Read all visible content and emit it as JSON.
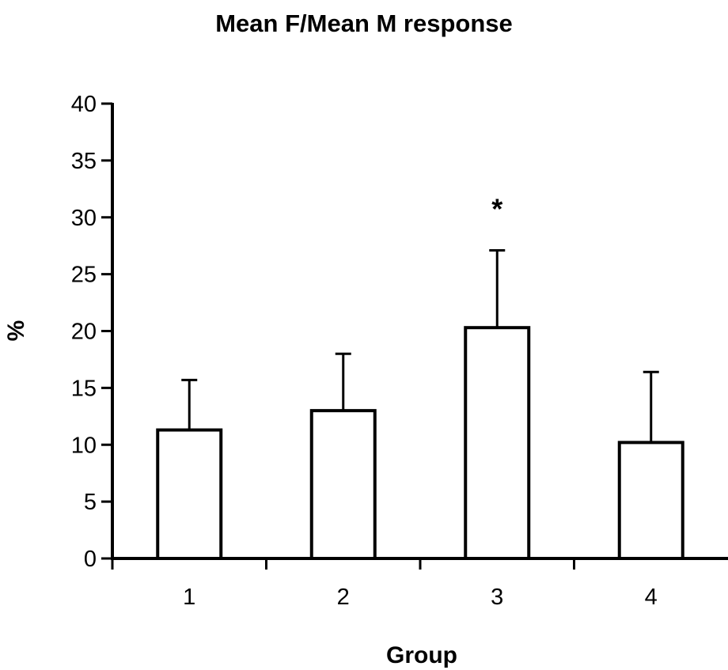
{
  "chart_data": {
    "type": "bar",
    "title": "Mean F/Mean M response",
    "xlabel": "Group",
    "ylabel": "%",
    "categories": [
      "1",
      "2",
      "3",
      "4"
    ],
    "values": [
      11.3,
      13.0,
      20.3,
      10.2
    ],
    "error_plus": [
      4.4,
      5.0,
      6.8,
      6.2
    ],
    "annotations": [
      "",
      "",
      "*",
      ""
    ],
    "ylim": [
      0,
      40
    ],
    "yticks": [
      0,
      5,
      10,
      15,
      20,
      25,
      30,
      35,
      40
    ],
    "grid": false,
    "legend": "none",
    "bar_fill": "#ffffff",
    "bar_stroke": "#000000"
  }
}
